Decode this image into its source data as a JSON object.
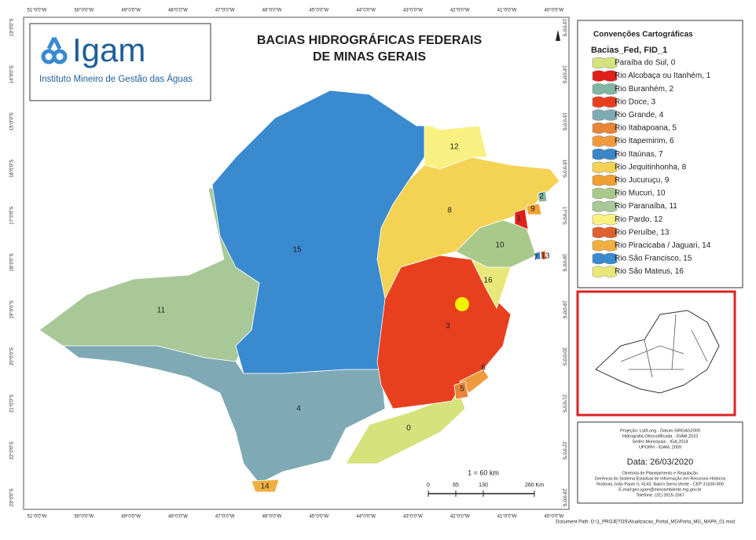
{
  "title_lines": [
    "BACIAS HIDROGRÁFICAS FEDERAIS",
    "DE MINAS GERAIS"
  ],
  "logo": {
    "name": "Igam",
    "subtitle": "Instituto Mineiro de Gestão das Águas"
  },
  "legend": {
    "title": "Convenções Cartográficas",
    "layer": "Bacias_Fed, FID_1",
    "items": [
      {
        "label": "Paraíba do Sul, 0",
        "color": "#d6e27c"
      },
      {
        "label": "Rio Alcobaça ou Itanhém, 1",
        "color": "#e0201b"
      },
      {
        "label": "Rio Buranhém, 2",
        "color": "#7fb7a0"
      },
      {
        "label": "Rio Doce, 3",
        "color": "#e8401e"
      },
      {
        "label": "Rio Grande, 4",
        "color": "#7fa9b5"
      },
      {
        "label": "Rio Itabapoana, 5",
        "color": "#e8853a"
      },
      {
        "label": "Rio Itapemirim, 6",
        "color": "#f09a40"
      },
      {
        "label": "Rio Itaúnas, 7",
        "color": "#3a86c8"
      },
      {
        "label": "Rio Jequitinhonha, 8",
        "color": "#f4d354"
      },
      {
        "label": "Rio Jucuruçu, 9",
        "color": "#f0a030"
      },
      {
        "label": "Rio Mucuri, 10",
        "color": "#a9c98a"
      },
      {
        "label": "Rio Paranaíba, 11",
        "color": "#a8c898"
      },
      {
        "label": "Rio Pardo, 12",
        "color": "#f8f080"
      },
      {
        "label": "Rio Peruíbe, 13",
        "color": "#e06030"
      },
      {
        "label": "Rio Piracicaba / Jaguari, 14",
        "color": "#f0b040"
      },
      {
        "label": "Rio São Francisco, 15",
        "color": "#3a8ad0"
      },
      {
        "label": "Rio São Mateus, 16",
        "color": "#e8e878"
      }
    ]
  },
  "map_labels": [
    "0",
    "1",
    "2",
    "3",
    "4",
    "5",
    "6",
    "7",
    "8",
    "9",
    "10",
    "11",
    "12",
    "13",
    "14",
    "15",
    "16"
  ],
  "lon_labels": [
    "51°0'0\"W",
    "50°0'0\"W",
    "49°0'0\"W",
    "48°0'0\"W",
    "47°0'0\"W",
    "46°0'0\"W",
    "45°0'0\"W",
    "44°0'0\"W",
    "43°0'0\"W",
    "42°0'0\"W",
    "41°0'0\"W",
    "40°0'0\"W"
  ],
  "lat_labels": [
    "13°0'0\"S",
    "14°0'0\"S",
    "15°0'0\"S",
    "16°0'0\"S",
    "17°0'0\"S",
    "18°0'0\"S",
    "19°0'0\"S",
    "20°0'0\"S",
    "21°0'0\"S",
    "22°0'0\"S",
    "23°0'0\"S"
  ],
  "scale": {
    "ratio": "1 = 60 km",
    "ticks": [
      "0",
      "65",
      "130",
      "260 Km"
    ]
  },
  "info": {
    "sources": [
      "Projeção: Lat/Long - Datum SIRGAS2000",
      "Hidrografia Ottocodificada - IGAM,2010",
      "Sedes Municipais - IGA,2014",
      "UPGRH - IGAM, 2009"
    ],
    "date": "Data: 26/03/2020",
    "credits": [
      "Diretoria de Planejamento e Regulação",
      "Gerência do Sistema Estadual de Informação em Recursos Hídricos",
      "Rodovia João Paulo II, 4143, Bairro Serra Verde - CEP 31630-900",
      "E-mail:geo.igam@meioambiente.mg.gov.br",
      "Telefone: (31) 3915-1567"
    ]
  },
  "footer": "Document Path: D:\\1_PROJETOS\\Atualizacao_Portal_MG\\Porta_MG_MAPA_01.mxd"
}
